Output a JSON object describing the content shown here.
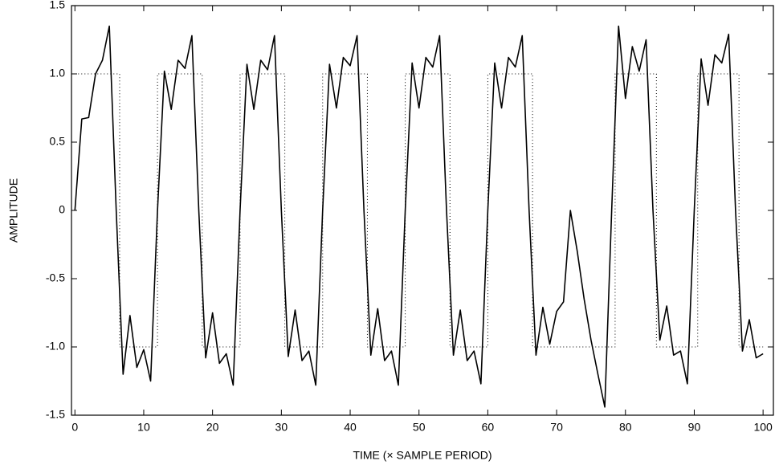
{
  "chart_data": {
    "type": "line",
    "xlabel": "TIME (× SAMPLE PERIOD)",
    "ylabel": "AMPLITUDE",
    "xlim": [
      -0.5,
      101.5
    ],
    "xticks": [
      0,
      10,
      20,
      30,
      40,
      50,
      60,
      70,
      80,
      90,
      100
    ],
    "ylim": [
      -1.5,
      1.5
    ],
    "yticks": [
      -1.5,
      {
        "value": -1,
        "label": "-1.0"
      },
      -0.5,
      0,
      0.5,
      {
        "value": 1,
        "label": "1.0"
      },
      1.5
    ],
    "grid": false,
    "series": [
      {
        "color": "#000000",
        "style": "solid",
        "x": [
          0,
          1,
          2,
          3,
          4,
          5,
          6,
          7,
          8,
          9,
          10,
          11,
          12,
          13,
          14,
          15,
          16,
          17,
          18,
          19,
          20,
          21,
          22,
          23,
          24,
          25,
          26,
          27,
          28,
          29,
          30,
          31,
          32,
          33,
          34,
          35,
          36,
          37,
          38,
          39,
          40,
          41,
          42,
          43,
          44,
          45,
          46,
          47,
          48,
          49,
          50,
          51,
          52,
          53,
          54,
          55,
          56,
          57,
          58,
          59,
          60,
          61,
          62,
          63,
          64,
          65,
          66,
          67,
          68,
          69,
          70,
          71,
          72,
          73,
          74,
          75,
          76,
          77,
          78,
          79,
          80,
          81,
          82,
          83,
          84,
          85,
          86,
          87,
          88,
          89,
          90,
          91,
          92,
          93,
          94,
          95,
          96,
          97,
          98,
          99,
          100
        ],
        "values": [
          0,
          0.67,
          0.68,
          1.0,
          1.1,
          1.35,
          0,
          -1.2,
          -0.77,
          -1.15,
          -1.02,
          -1.25,
          0,
          1.02,
          0.74,
          1.1,
          1.04,
          1.28,
          0,
          -1.08,
          -0.75,
          -1.12,
          -1.05,
          -1.28,
          0,
          1.07,
          0.74,
          1.1,
          1.03,
          1.28,
          0,
          -1.07,
          -0.73,
          -1.1,
          -1.03,
          -1.28,
          0,
          1.07,
          0.75,
          1.12,
          1.06,
          1.28,
          0,
          -1.06,
          -0.72,
          -1.1,
          -1.03,
          -1.28,
          0,
          1.08,
          0.75,
          1.12,
          1.05,
          1.28,
          0,
          -1.06,
          -0.73,
          -1.1,
          -1.03,
          -1.27,
          0,
          1.08,
          0.75,
          1.12,
          1.05,
          1.28,
          0,
          -1.06,
          -0.71,
          -0.98,
          -0.74,
          -0.67,
          0,
          -0.3,
          -0.65,
          -0.95,
          -1.2,
          -1.44,
          0,
          1.35,
          0.82,
          1.2,
          1.02,
          1.25,
          0,
          -0.95,
          -0.7,
          -1.06,
          -1.03,
          -1.27,
          0,
          1.11,
          0.77,
          1.14,
          1.08,
          1.29,
          0,
          -1.03,
          -0.8,
          -1.08,
          -1.05
        ]
      },
      {
        "color": "#000000",
        "style": "dotted",
        "x": [
          0,
          6.5,
          6.5,
          12,
          12,
          18.5,
          18.5,
          24,
          24,
          30.5,
          30.5,
          36,
          36,
          42.5,
          42.5,
          48,
          48,
          54.5,
          54.5,
          60,
          60,
          66.5,
          66.5,
          78.5,
          78.5,
          84.5,
          84.5,
          90.5,
          90.5,
          96.5,
          96.5,
          100
        ],
        "values": [
          1,
          1,
          -1,
          -1,
          1,
          1,
          -1,
          -1,
          1,
          1,
          -1,
          -1,
          1,
          1,
          -1,
          -1,
          1,
          1,
          -1,
          -1,
          1,
          1,
          -1,
          -1,
          1,
          1,
          -1,
          -1,
          1,
          1,
          -1,
          -1
        ]
      }
    ]
  }
}
